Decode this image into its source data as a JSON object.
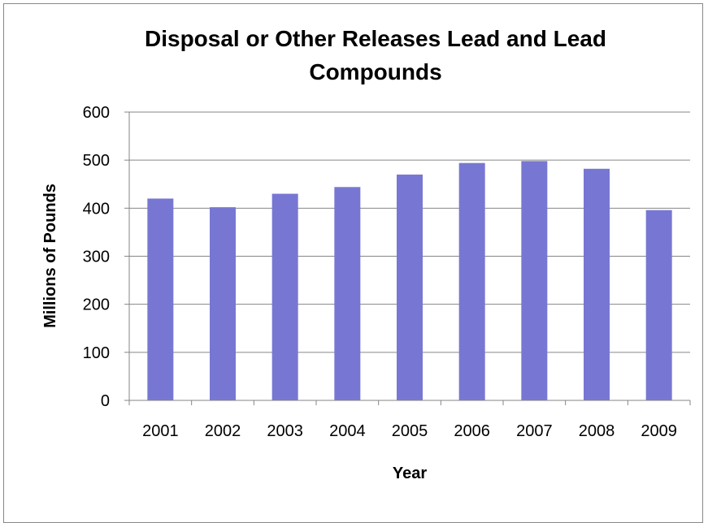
{
  "chart_data": {
    "type": "bar",
    "title_lines": [
      "Disposal or Other Releases Lead and Lead",
      "Compounds"
    ],
    "xlabel": "Year",
    "ylabel": "Millions of Pounds",
    "categories": [
      "2001",
      "2002",
      "2003",
      "2004",
      "2005",
      "2006",
      "2007",
      "2008",
      "2009"
    ],
    "values": [
      420,
      402,
      430,
      444,
      470,
      494,
      498,
      482,
      396
    ],
    "ylim": [
      0,
      600
    ],
    "yticks": [
      "0",
      "100",
      "200",
      "300",
      "400",
      "500",
      "600"
    ],
    "grid": true,
    "bar_color": "#7777d3"
  }
}
